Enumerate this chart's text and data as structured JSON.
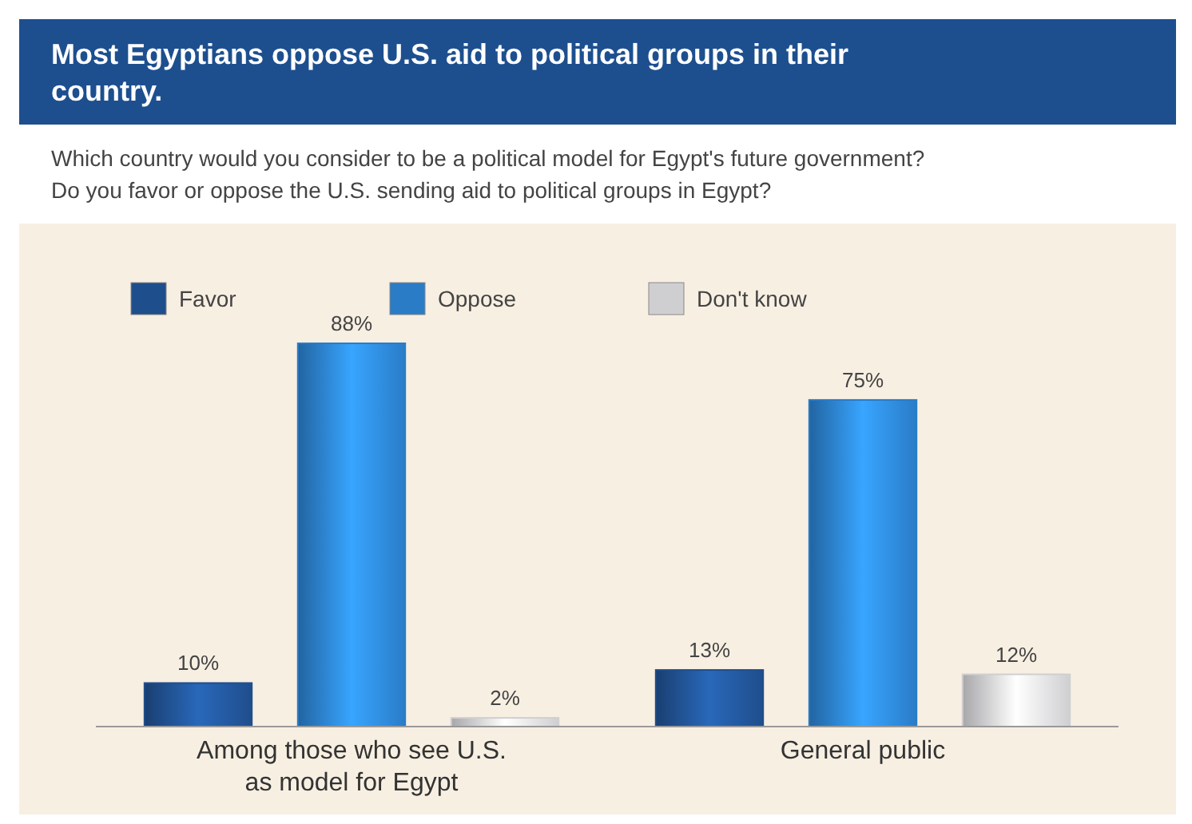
{
  "chart_data": {
    "type": "bar",
    "title": "Most Egyptians oppose U.S. aid to political groups in their country.",
    "subtitle": "Which country would you consider to be a political model for Egypt's future government?\nDo you favor or oppose the U.S. sending aid to political groups in Egypt?",
    "categories": [
      "Among those who see U.S. as model for Egypt",
      "General public"
    ],
    "series": [
      {
        "name": "Favor",
        "color": "#1f4e8c",
        "values": [
          10,
          13
        ],
        "value_labels": [
          "10%",
          "13%"
        ]
      },
      {
        "name": "Oppose",
        "color": "#2a7cc7",
        "values": [
          88,
          75
        ],
        "value_labels": [
          "88%",
          "75%"
        ]
      },
      {
        "name": "Don't know",
        "color": "#cfcfd2",
        "values": [
          2,
          12
        ],
        "value_labels": [
          "2%",
          "12%"
        ]
      }
    ],
    "legend": "top left",
    "grid": false
  }
}
